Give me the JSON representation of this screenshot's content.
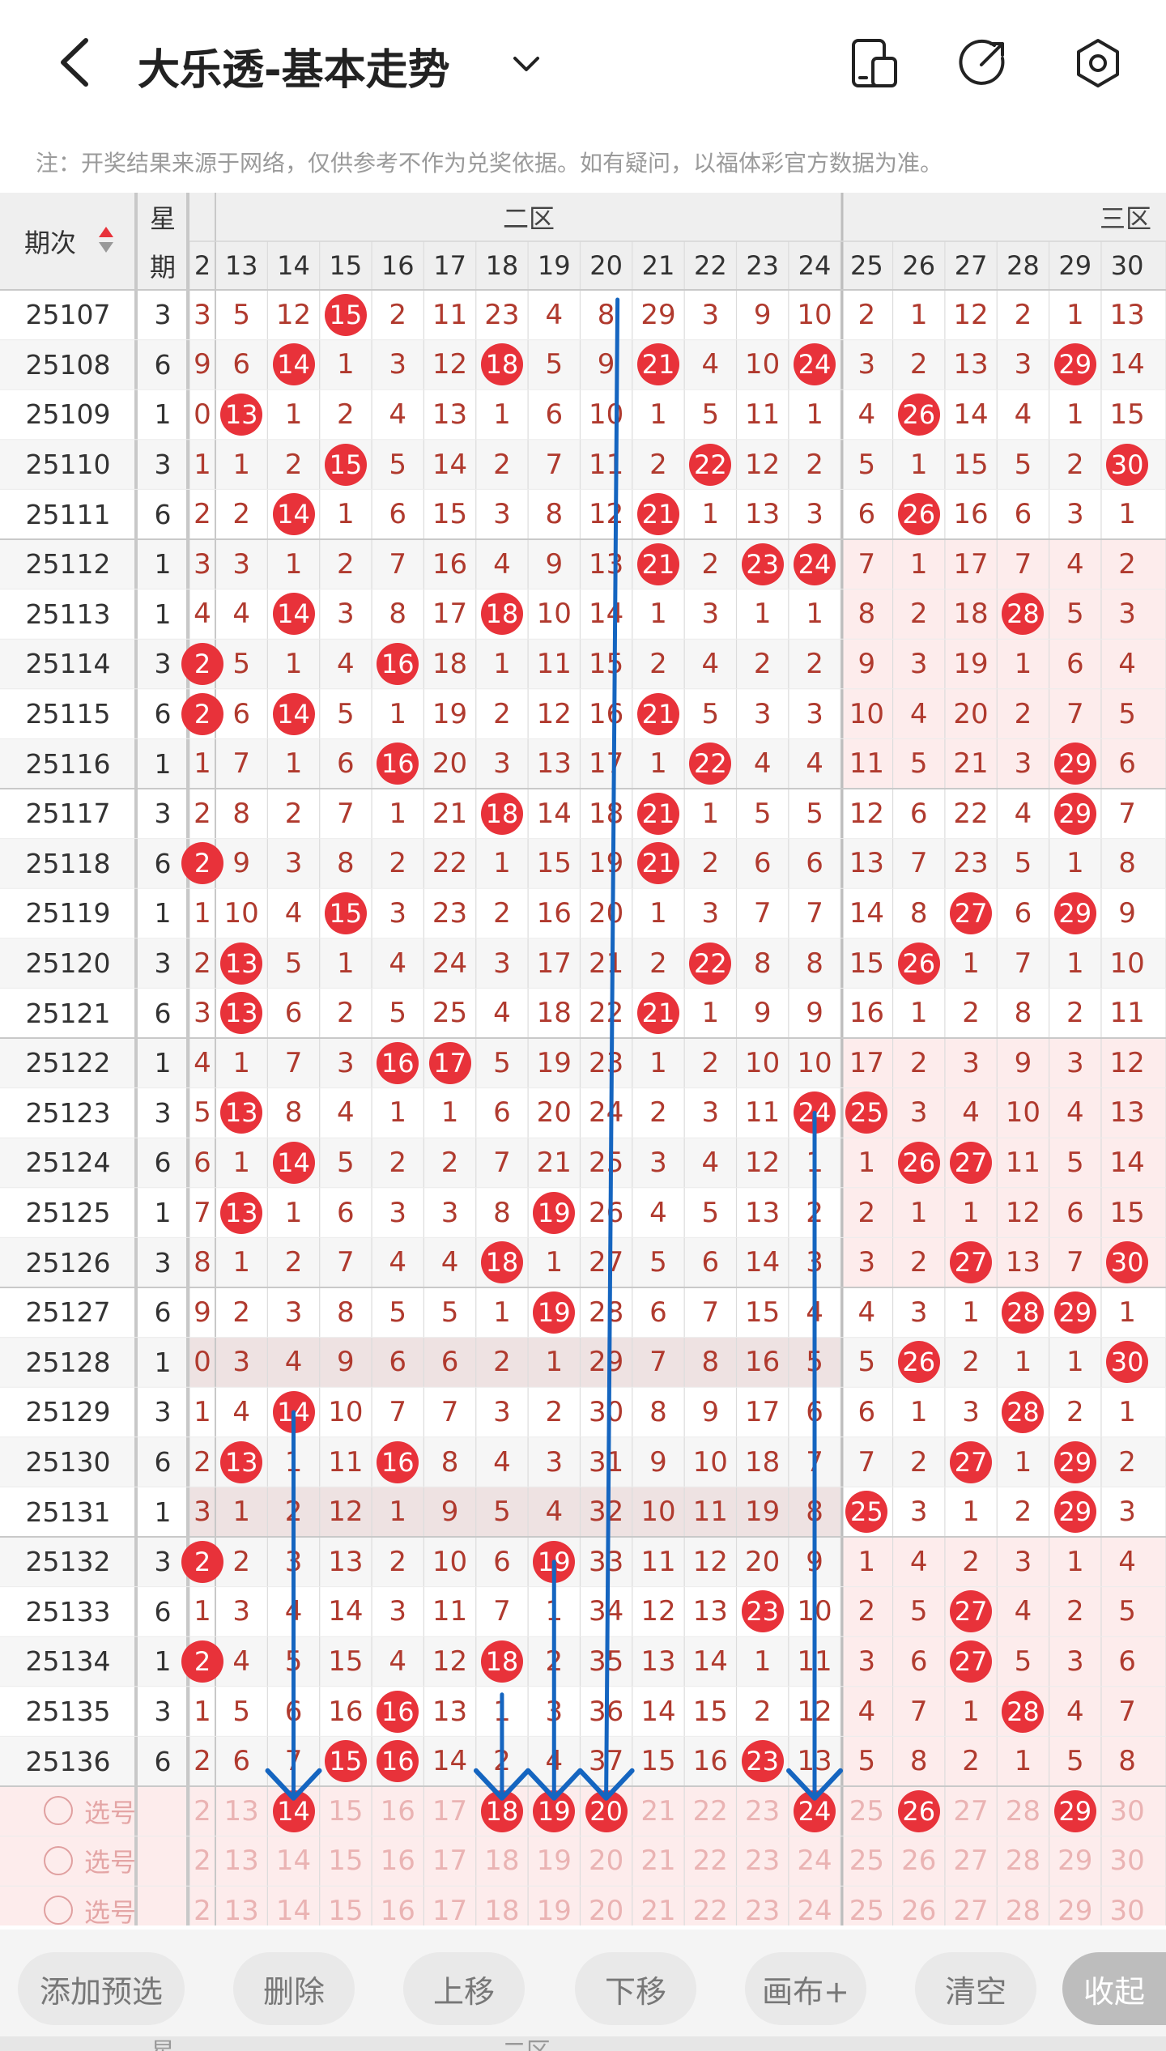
{
  "header": {
    "title": "大乐透-基本走势",
    "icons": [
      "back-icon",
      "chevron-down-icon",
      "device-icon",
      "share-icon",
      "settings-icon"
    ]
  },
  "notice": "注：开奖结果来源于网络，仅供参考不作为兑奖依据。如有疑问，以福体彩官方数据为准。",
  "table": {
    "col_period": "期次",
    "col_week_top": "星",
    "col_week_bottom": "期",
    "zone2_label": "二区",
    "zone3_label": "三区",
    "col_numbers": [
      "2",
      "13",
      "14",
      "15",
      "16",
      "17",
      "18",
      "19",
      "20",
      "21",
      "22",
      "23",
      "24",
      "25",
      "26",
      "27",
      "28",
      "29",
      "30"
    ],
    "rows": [
      {
        "period": "25107",
        "week": "3",
        "cells": [
          "3",
          "5",
          "12",
          "15",
          "2",
          "11",
          "23",
          "4",
          "8",
          "29",
          "3",
          "9",
          "10",
          "2",
          "1",
          "12",
          "2",
          "1",
          "13"
        ],
        "hits": [
          3
        ]
      },
      {
        "period": "25108",
        "week": "6",
        "cells": [
          "9",
          "6",
          "14",
          "1",
          "3",
          "12",
          "18",
          "5",
          "9",
          "21",
          "4",
          "10",
          "24",
          "3",
          "2",
          "13",
          "3",
          "29",
          "14"
        ],
        "hits": [
          2,
          6,
          9,
          12,
          17
        ]
      },
      {
        "period": "25109",
        "week": "1",
        "cells": [
          "0",
          "13",
          "1",
          "2",
          "4",
          "13",
          "1",
          "6",
          "10",
          "1",
          "5",
          "11",
          "1",
          "4",
          "26",
          "14",
          "4",
          "1",
          "15"
        ],
        "hits": [
          1,
          14
        ]
      },
      {
        "period": "25110",
        "week": "3",
        "cells": [
          "1",
          "1",
          "2",
          "15",
          "5",
          "14",
          "2",
          "7",
          "11",
          "2",
          "22",
          "12",
          "2",
          "5",
          "1",
          "15",
          "5",
          "2",
          "30"
        ],
        "hits": [
          3,
          10,
          18
        ]
      },
      {
        "period": "25111",
        "week": "6",
        "cells": [
          "2",
          "2",
          "14",
          "1",
          "6",
          "15",
          "3",
          "8",
          "12",
          "21",
          "1",
          "13",
          "3",
          "6",
          "26",
          "16",
          "6",
          "3",
          "1"
        ],
        "hits": [
          2,
          9,
          14
        ]
      },
      {
        "period": "25112",
        "week": "1",
        "cells": [
          "3",
          "3",
          "1",
          "2",
          "7",
          "16",
          "4",
          "9",
          "13",
          "21",
          "2",
          "23",
          "24",
          "7",
          "1",
          "17",
          "7",
          "4",
          "2"
        ],
        "hits": [
          9,
          11,
          12
        ]
      },
      {
        "period": "25113",
        "week": "1",
        "cells": [
          "4",
          "4",
          "14",
          "3",
          "8",
          "17",
          "18",
          "10",
          "14",
          "1",
          "3",
          "1",
          "1",
          "8",
          "2",
          "18",
          "28",
          "5",
          "3"
        ],
        "hits": [
          2,
          6,
          16
        ]
      },
      {
        "period": "25114",
        "week": "3",
        "cells": [
          "2",
          "5",
          "1",
          "4",
          "16",
          "18",
          "1",
          "11",
          "15",
          "2",
          "4",
          "2",
          "2",
          "9",
          "3",
          "19",
          "1",
          "6",
          "4"
        ],
        "hits": [
          0,
          4
        ]
      },
      {
        "period": "25115",
        "week": "6",
        "cells": [
          "2",
          "6",
          "14",
          "5",
          "1",
          "19",
          "2",
          "12",
          "16",
          "21",
          "5",
          "3",
          "3",
          "10",
          "4",
          "20",
          "2",
          "7",
          "5"
        ],
        "hits": [
          0,
          2,
          9
        ]
      },
      {
        "period": "25116",
        "week": "1",
        "cells": [
          "1",
          "7",
          "1",
          "6",
          "16",
          "20",
          "3",
          "13",
          "17",
          "1",
          "22",
          "4",
          "4",
          "11",
          "5",
          "21",
          "3",
          "29",
          "6"
        ],
        "hits": [
          4,
          10,
          17
        ]
      },
      {
        "period": "25117",
        "week": "3",
        "cells": [
          "2",
          "8",
          "2",
          "7",
          "1",
          "21",
          "18",
          "14",
          "18",
          "21",
          "1",
          "5",
          "5",
          "12",
          "6",
          "22",
          "4",
          "29",
          "7"
        ],
        "hits": [
          6,
          9,
          17
        ]
      },
      {
        "period": "25118",
        "week": "6",
        "cells": [
          "2",
          "9",
          "3",
          "8",
          "2",
          "22",
          "1",
          "15",
          "19",
          "21",
          "2",
          "6",
          "6",
          "13",
          "7",
          "23",
          "5",
          "1",
          "8"
        ],
        "hits": [
          0,
          9
        ]
      },
      {
        "period": "25119",
        "week": "1",
        "cells": [
          "1",
          "10",
          "4",
          "15",
          "3",
          "23",
          "2",
          "16",
          "20",
          "1",
          "3",
          "7",
          "7",
          "14",
          "8",
          "27",
          "6",
          "29",
          "9"
        ],
        "hits": [
          3,
          15,
          17
        ]
      },
      {
        "period": "25120",
        "week": "3",
        "cells": [
          "2",
          "13",
          "5",
          "1",
          "4",
          "24",
          "3",
          "17",
          "21",
          "2",
          "22",
          "8",
          "8",
          "15",
          "26",
          "1",
          "7",
          "1",
          "10"
        ],
        "hits": [
          1,
          10,
          14
        ]
      },
      {
        "period": "25121",
        "week": "6",
        "cells": [
          "3",
          "13",
          "6",
          "2",
          "5",
          "25",
          "4",
          "18",
          "22",
          "21",
          "1",
          "9",
          "9",
          "16",
          "1",
          "2",
          "8",
          "2",
          "11"
        ],
        "hits": [
          1,
          9
        ]
      },
      {
        "period": "25122",
        "week": "1",
        "cells": [
          "4",
          "1",
          "7",
          "3",
          "16",
          "17",
          "5",
          "19",
          "23",
          "1",
          "2",
          "10",
          "10",
          "17",
          "2",
          "3",
          "9",
          "3",
          "12"
        ],
        "hits": [
          4,
          5
        ]
      },
      {
        "period": "25123",
        "week": "3",
        "cells": [
          "5",
          "13",
          "8",
          "4",
          "1",
          "1",
          "6",
          "20",
          "24",
          "2",
          "3",
          "11",
          "24",
          "25",
          "3",
          "4",
          "10",
          "4",
          "13"
        ],
        "hits": [
          1,
          12,
          13
        ]
      },
      {
        "period": "25124",
        "week": "6",
        "cells": [
          "6",
          "1",
          "14",
          "5",
          "2",
          "2",
          "7",
          "21",
          "25",
          "3",
          "4",
          "12",
          "1",
          "1",
          "26",
          "27",
          "11",
          "5",
          "14"
        ],
        "hits": [
          2,
          14,
          15
        ]
      },
      {
        "period": "25125",
        "week": "1",
        "cells": [
          "7",
          "13",
          "1",
          "6",
          "3",
          "3",
          "8",
          "19",
          "26",
          "4",
          "5",
          "13",
          "2",
          "2",
          "1",
          "1",
          "12",
          "6",
          "15"
        ],
        "hits": [
          1,
          7
        ]
      },
      {
        "period": "25126",
        "week": "3",
        "cells": [
          "8",
          "1",
          "2",
          "7",
          "4",
          "4",
          "18",
          "1",
          "27",
          "5",
          "6",
          "14",
          "3",
          "3",
          "2",
          "27",
          "13",
          "7",
          "30"
        ],
        "hits": [
          6,
          15,
          18
        ]
      },
      {
        "period": "25127",
        "week": "6",
        "cells": [
          "9",
          "2",
          "3",
          "8",
          "5",
          "5",
          "1",
          "19",
          "28",
          "6",
          "7",
          "15",
          "4",
          "4",
          "3",
          "1",
          "28",
          "29",
          "1"
        ],
        "hits": [
          7,
          16,
          17
        ]
      },
      {
        "period": "25128",
        "week": "1",
        "cells": [
          "0",
          "3",
          "4",
          "9",
          "6",
          "6",
          "2",
          "1",
          "29",
          "7",
          "8",
          "16",
          "5",
          "5",
          "26",
          "2",
          "1",
          "1",
          "30"
        ],
        "hits": [
          14,
          18
        ]
      },
      {
        "period": "25129",
        "week": "3",
        "cells": [
          "1",
          "4",
          "14",
          "10",
          "7",
          "7",
          "3",
          "2",
          "30",
          "8",
          "9",
          "17",
          "6",
          "6",
          "1",
          "3",
          "28",
          "2",
          "1"
        ],
        "hits": [
          2,
          16
        ]
      },
      {
        "period": "25130",
        "week": "6",
        "cells": [
          "2",
          "13",
          "1",
          "11",
          "16",
          "8",
          "4",
          "3",
          "31",
          "9",
          "10",
          "18",
          "7",
          "7",
          "2",
          "27",
          "1",
          "29",
          "2"
        ],
        "hits": [
          1,
          4,
          15,
          17
        ]
      },
      {
        "period": "25131",
        "week": "1",
        "cells": [
          "3",
          "1",
          "2",
          "12",
          "1",
          "9",
          "5",
          "4",
          "32",
          "10",
          "11",
          "19",
          "8",
          "25",
          "3",
          "1",
          "2",
          "29",
          "3"
        ],
        "hits": [
          13,
          17
        ]
      },
      {
        "period": "25132",
        "week": "3",
        "cells": [
          "2",
          "2",
          "3",
          "13",
          "2",
          "10",
          "6",
          "19",
          "33",
          "11",
          "12",
          "20",
          "9",
          "1",
          "4",
          "2",
          "3",
          "1",
          "4"
        ],
        "hits": [
          0,
          7
        ]
      },
      {
        "period": "25133",
        "week": "6",
        "cells": [
          "1",
          "3",
          "4",
          "14",
          "3",
          "11",
          "7",
          "1",
          "34",
          "12",
          "13",
          "23",
          "10",
          "2",
          "5",
          "27",
          "4",
          "2",
          "5"
        ],
        "hits": [
          11,
          15
        ]
      },
      {
        "period": "25134",
        "week": "1",
        "cells": [
          "2",
          "4",
          "5",
          "15",
          "4",
          "12",
          "18",
          "2",
          "35",
          "13",
          "14",
          "1",
          "11",
          "3",
          "6",
          "27",
          "5",
          "3",
          "6"
        ],
        "hits": [
          0,
          6,
          15
        ]
      },
      {
        "period": "25135",
        "week": "3",
        "cells": [
          "1",
          "5",
          "6",
          "16",
          "16",
          "13",
          "1",
          "3",
          "36",
          "14",
          "15",
          "2",
          "12",
          "4",
          "7",
          "1",
          "28",
          "4",
          "7"
        ],
        "hits": [
          4,
          16
        ]
      },
      {
        "period": "25136",
        "week": "6",
        "cells": [
          "2",
          "6",
          "7",
          "15",
          "16",
          "14",
          "2",
          "4",
          "37",
          "15",
          "16",
          "23",
          "13",
          "5",
          "8",
          "2",
          "1",
          "5",
          "8"
        ],
        "hits": [
          3,
          4,
          11
        ]
      }
    ],
    "pick_label": "选号",
    "pick_rows": [
      {
        "hits": [
          2,
          6,
          7,
          8,
          12,
          14,
          17
        ]
      },
      {
        "hits": []
      },
      {
        "hits": []
      }
    ]
  },
  "toolbar": {
    "buttons": [
      "添加预选",
      "删除",
      "上移",
      "下移",
      "画布+",
      "清空",
      "收起"
    ]
  },
  "footer_peek": {
    "week_top": "星",
    "zone2_label": "二区"
  },
  "colors": {
    "ball": "#e8323a",
    "text": "#c0392b",
    "line": "#1565c0",
    "pink": "#fdecec",
    "header": "#efefef"
  }
}
